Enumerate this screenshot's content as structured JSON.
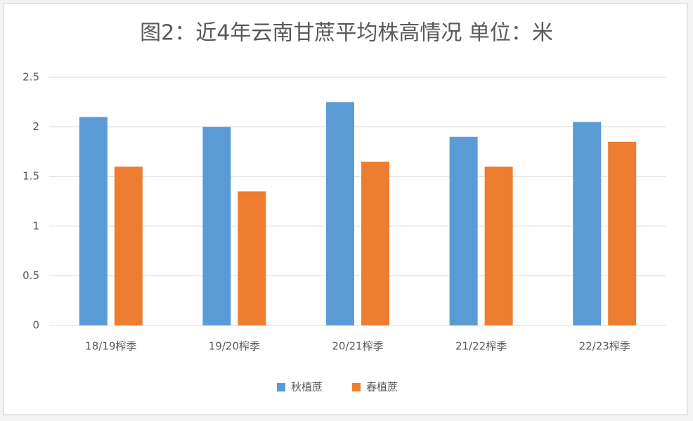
{
  "chart_data": {
    "type": "bar",
    "title": "图2：近4年云南甘蔗平均株高情况  单位：米",
    "categories": [
      "18/19榨季",
      "19/20榨季",
      "20/21榨季",
      "21/22榨季",
      "22/23榨季"
    ],
    "series": [
      {
        "name": "秋植蔗",
        "color": "#5b9bd5",
        "values": [
          2.1,
          2.0,
          2.25,
          1.9,
          2.05
        ]
      },
      {
        "name": "春植蔗",
        "color": "#ed7d31",
        "values": [
          1.6,
          1.35,
          1.65,
          1.6,
          1.85
        ]
      }
    ],
    "ylim": [
      0,
      2.5
    ],
    "yticks": [
      0,
      0.5,
      1,
      1.5,
      2,
      2.5
    ],
    "grid": true,
    "legend": "bottom"
  }
}
